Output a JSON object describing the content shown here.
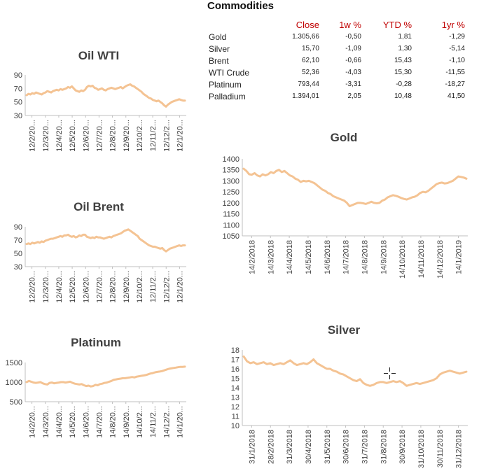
{
  "table": {
    "title": "Commodities",
    "columns": [
      "",
      "Close",
      "1w %",
      "YTD %",
      "1yr %"
    ],
    "rows": [
      {
        "name": "Gold",
        "close": "1.305,66",
        "w1": "-0,50",
        "ytd": "1,81",
        "yr1": "-1,29"
      },
      {
        "name": "Silver",
        "close": "15,70",
        "w1": "-1,09",
        "ytd": "1,30",
        "yr1": "-5,14"
      },
      {
        "name": "Brent",
        "close": "62,10",
        "w1": "-0,66",
        "ytd": "15,43",
        "yr1": "-1,10"
      },
      {
        "name": "WTI Crude",
        "close": "52,36",
        "w1": "-4,03",
        "ytd": "15,30",
        "yr1": "-11,55"
      },
      {
        "name": "Platinum",
        "close": "793,44",
        "w1": "-3,31",
        "ytd": "-0,28",
        "yr1": "-18,27"
      },
      {
        "name": "Palladium",
        "close": "1.394,01",
        "w1": "2,05",
        "ytd": "10,48",
        "yr1": "41,50"
      }
    ]
  },
  "colors": {
    "series": "#f4c393",
    "axis": "#bfbfbf",
    "header": "#c00000"
  },
  "chart_data": [
    {
      "id": "oil-wti",
      "type": "line",
      "title": "Oil WTI",
      "ylim": [
        30,
        90
      ],
      "yticks": [
        30,
        50,
        70,
        90
      ],
      "xticks": [
        "12/2/20...",
        "12/3/20...",
        "12/4/20...",
        "12/5/20...",
        "12/6/20...",
        "12/7/20...",
        "12/8/20...",
        "12/9/20...",
        "12/10/2...",
        "12/11/2...",
        "12/12/2...",
        "12/1/20..."
      ],
      "y": [
        60,
        62,
        61,
        63,
        62,
        64,
        63,
        62,
        61,
        63,
        64,
        66,
        65,
        64,
        66,
        67,
        68,
        67,
        69,
        68,
        69,
        70,
        72,
        71,
        73,
        70,
        67,
        66,
        65,
        67,
        66,
        68,
        72,
        74,
        73,
        74,
        71,
        70,
        68,
        69,
        70,
        68,
        67,
        69,
        70,
        71,
        70,
        69,
        70,
        71,
        72,
        70,
        72,
        74,
        75,
        76,
        74,
        73,
        71,
        69,
        67,
        65,
        62,
        60,
        58,
        56,
        55,
        53,
        52,
        51,
        52,
        50,
        48,
        45,
        43,
        46,
        48,
        50,
        51,
        52,
        53,
        54,
        53,
        52,
        52
      ]
    },
    {
      "id": "oil-brent",
      "type": "line",
      "title": "Oil Brent",
      "ylim": [
        30,
        90
      ],
      "yticks": [
        30,
        50,
        70,
        90
      ],
      "xticks": [
        "12/2/20...",
        "12/3/20...",
        "12/4/20...",
        "12/5/20...",
        "12/6/20...",
        "12/7/20...",
        "12/8/20...",
        "12/9/20...",
        "12/10/2...",
        "12/11/2...",
        "12/12/2...",
        "12/1/20..."
      ],
      "y": [
        64,
        65,
        64,
        66,
        65,
        66,
        67,
        66,
        68,
        67,
        69,
        70,
        71,
        72,
        72,
        73,
        74,
        75,
        76,
        75,
        77,
        77,
        78,
        76,
        75,
        76,
        74,
        75,
        77,
        76,
        78,
        78,
        75,
        74,
        73,
        74,
        73,
        75,
        74,
        74,
        73,
        72,
        73,
        74,
        75,
        74,
        76,
        77,
        78,
        79,
        80,
        82,
        84,
        85,
        86,
        84,
        82,
        80,
        78,
        76,
        72,
        70,
        68,
        66,
        64,
        62,
        61,
        60,
        60,
        59,
        58,
        57,
        58,
        55,
        53,
        55,
        57,
        58,
        59,
        60,
        61,
        62,
        61,
        62,
        62
      ]
    },
    {
      "id": "platinum",
      "type": "line",
      "title": "Platinum",
      "ylim": [
        500,
        1500
      ],
      "yticks": [
        500,
        1000,
        1500
      ],
      "xticks": [
        "14/2/20...",
        "14/3/20...",
        "14/4/20...",
        "14/5/20...",
        "14/6/20...",
        "14/7/20...",
        "14/8/20...",
        "14/9/20...",
        "14/10/2...",
        "14/11/2...",
        "14/12/2...",
        "14/1/20..."
      ],
      "y": [
        1000,
        1030,
        1010,
        990,
        980,
        990,
        1000,
        970,
        950,
        940,
        980,
        990,
        970,
        980,
        990,
        1000,
        1000,
        990,
        1000,
        1010,
        980,
        960,
        950,
        940,
        950,
        920,
        900,
        910,
        890,
        900,
        930,
        920,
        950,
        960,
        980,
        990,
        1010,
        1030,
        1060,
        1070,
        1080,
        1090,
        1100,
        1100,
        1110,
        1120,
        1130,
        1120,
        1140,
        1150,
        1160,
        1170,
        1180,
        1200,
        1220,
        1230,
        1250,
        1260,
        1270,
        1280,
        1300,
        1320,
        1340,
        1350,
        1360,
        1370,
        1380,
        1390,
        1390,
        1395
      ]
    },
    {
      "id": "gold",
      "type": "line",
      "title": "Gold",
      "ylim": [
        1050,
        1400
      ],
      "yticks": [
        1050,
        1100,
        1150,
        1200,
        1250,
        1300,
        1350,
        1400
      ],
      "xticks": [
        "14/2/2018",
        "14/3/2018",
        "14/4/2018",
        "14/5/2018",
        "14/6/2018",
        "14/7/2018",
        "14/8/2018",
        "14/9/2018",
        "14/10/2018",
        "14/11/2018",
        "14/12/2018",
        "14/1/2019"
      ],
      "y": [
        1355,
        1345,
        1330,
        1328,
        1335,
        1325,
        1320,
        1330,
        1325,
        1330,
        1340,
        1335,
        1345,
        1350,
        1340,
        1345,
        1335,
        1325,
        1320,
        1310,
        1305,
        1295,
        1300,
        1298,
        1300,
        1295,
        1290,
        1280,
        1270,
        1260,
        1255,
        1245,
        1240,
        1230,
        1225,
        1220,
        1215,
        1210,
        1200,
        1185,
        1190,
        1195,
        1200,
        1200,
        1198,
        1195,
        1200,
        1205,
        1200,
        1198,
        1200,
        1210,
        1215,
        1225,
        1230,
        1235,
        1232,
        1228,
        1222,
        1218,
        1215,
        1220,
        1225,
        1228,
        1235,
        1245,
        1250,
        1248,
        1255,
        1265,
        1275,
        1285,
        1290,
        1292,
        1288,
        1290,
        1295,
        1300,
        1310,
        1320,
        1318,
        1315,
        1310
      ]
    },
    {
      "id": "silver",
      "type": "line",
      "title": "Silver",
      "ylim": [
        10,
        18
      ],
      "yticks": [
        10,
        11,
        12,
        13,
        14,
        15,
        16,
        17,
        18
      ],
      "xticks": [
        "31/1/2018",
        "28/2/2018",
        "31/3/2018",
        "30/4/2018",
        "31/5/2018",
        "30/6/2018",
        "31/7/2018",
        "31/8/2018",
        "30/9/2018",
        "31/10/2018",
        "30/11/2018",
        "31/12/2018"
      ],
      "y": [
        17.3,
        16.8,
        16.6,
        16.7,
        16.5,
        16.6,
        16.7,
        16.5,
        16.6,
        16.4,
        16.5,
        16.6,
        16.5,
        16.7,
        16.9,
        16.6,
        16.4,
        16.5,
        16.6,
        16.5,
        16.7,
        17.0,
        16.6,
        16.4,
        16.2,
        16.0,
        16.0,
        15.8,
        15.7,
        15.5,
        15.4,
        15.2,
        15.0,
        14.8,
        14.7,
        14.9,
        14.5,
        14.3,
        14.2,
        14.3,
        14.5,
        14.6,
        14.6,
        14.5,
        14.6,
        14.7,
        14.6,
        14.7,
        14.5,
        14.2,
        14.3,
        14.4,
        14.5,
        14.4,
        14.5,
        14.6,
        14.7,
        14.8,
        15.0,
        15.4,
        15.6,
        15.7,
        15.8,
        15.7,
        15.6,
        15.5,
        15.6,
        15.7
      ]
    }
  ]
}
